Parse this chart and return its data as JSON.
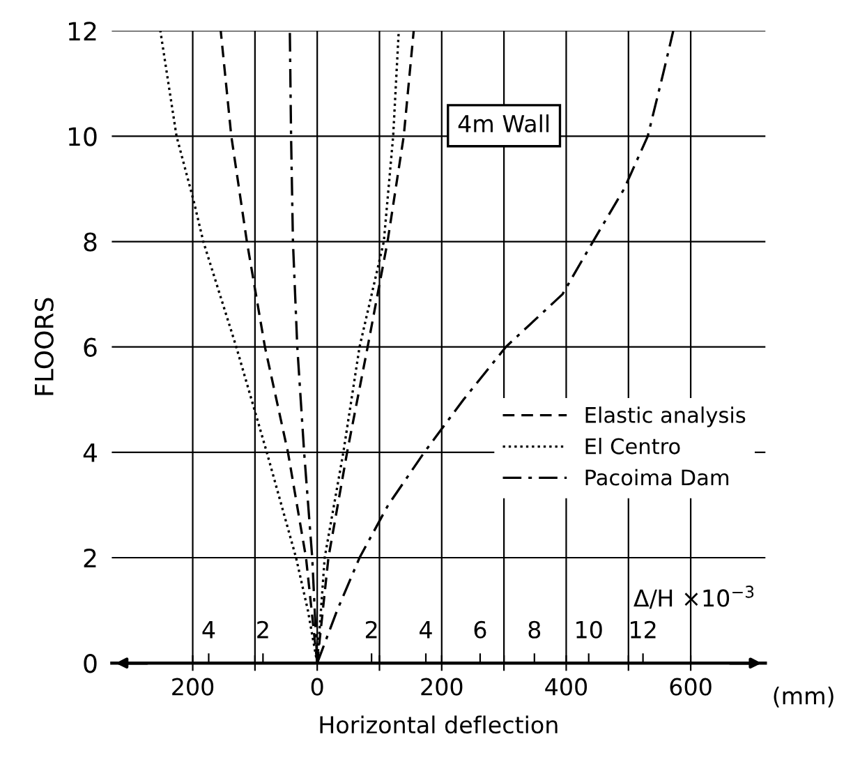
{
  "chart_data": {
    "type": "line",
    "xlabel": "Horizontal deflection",
    "ylabel": "FLOORS",
    "x2label": "Δ/H ×10$^{−3}$",
    "annotations": [
      "4m Wall",
      "(mm)"
    ],
    "xlim": [
      -330,
      720
    ],
    "ylim": [
      0,
      12
    ],
    "xticks": [
      {
        "value": -200,
        "label": "200"
      },
      {
        "value": -100,
        "label": null
      },
      0,
      {
        "value": 100,
        "label": null
      },
      200,
      {
        "value": 300,
        "label": null
      },
      400,
      {
        "value": 500,
        "label": null
      },
      600
    ],
    "yticks": [
      0,
      2,
      4,
      6,
      8,
      10,
      12
    ],
    "x2lim": [
      -7.57,
      16.51
    ],
    "x2ticks": [
      {
        "value": -4,
        "label": "4"
      },
      {
        "value": -2,
        "label": "2"
      },
      {
        "value": 2,
        "label": "2"
      },
      {
        "value": 4,
        "label": "4"
      },
      6,
      8,
      10,
      12
    ],
    "grid": true,
    "legend": "right",
    "series": [
      {
        "name": "Elastic analysis",
        "color": "#000000",
        "line_style": "dashed",
        "x": [
          0,
          18,
          48,
          81,
          113,
          139,
          155
        ],
        "values": [
          0,
          2,
          4,
          6,
          8,
          10,
          12
        ]
      },
      {
        "color": "#000000",
        "line_style": "dashed",
        "x": [
          0,
          -18,
          -47,
          -84,
          -113,
          -138,
          -155
        ],
        "values": [
          0,
          2,
          4,
          6,
          8,
          10,
          12
        ]
      },
      {
        "name": "El Centro",
        "color": "#000000",
        "line_style": "dotted",
        "x": [
          0,
          12,
          42,
          68,
          107,
          122,
          131
        ],
        "values": [
          0,
          2,
          4,
          6,
          8,
          10,
          12
        ]
      },
      {
        "color": "#000000",
        "line_style": "dotted",
        "x": [
          0,
          -15,
          -34,
          -81,
          -130,
          -183,
          -198,
          -226,
          -252
        ],
        "values": [
          0,
          1,
          2,
          4,
          6,
          8,
          8.75,
          10,
          12
        ]
      },
      {
        "name": "Pacoima Dam",
        "color": "#000000",
        "line_style": "dashdot",
        "x": [
          0,
          32,
          68,
          114,
          172,
          235,
          303,
          394,
          443,
          493,
          531,
          556,
          572
        ],
        "values": [
          0,
          1,
          2,
          3,
          4,
          5,
          6,
          7,
          8,
          9,
          10,
          11.2,
          12
        ]
      },
      {
        "color": "#000000",
        "line_style": "dashdot",
        "x": [
          0,
          -8,
          -21,
          -32,
          -39,
          -42,
          -44
        ],
        "values": [
          0,
          2,
          4,
          6,
          8,
          10,
          12
        ]
      }
    ]
  }
}
